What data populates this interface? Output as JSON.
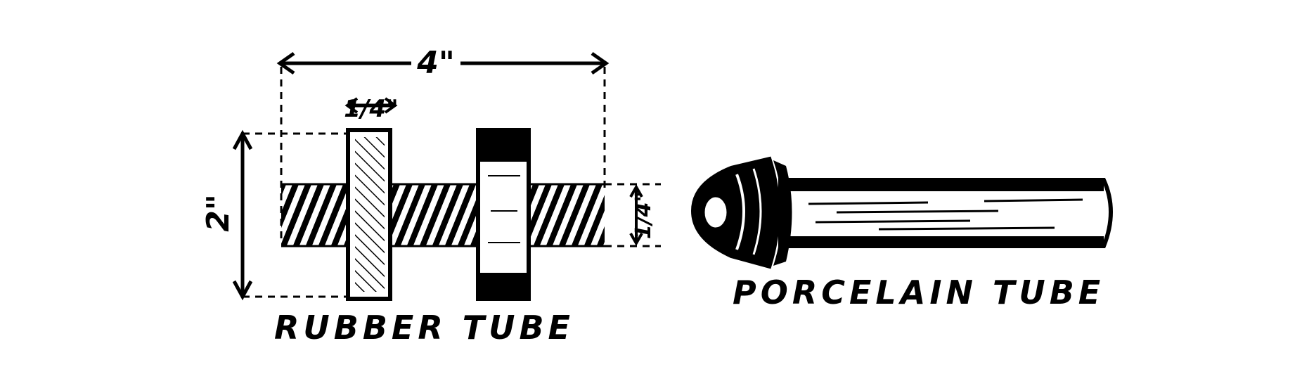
{
  "figure": {
    "left_caption": "RUBBER TUBE",
    "right_caption": "PORCELAIN TUBE",
    "dimensions": {
      "overall_length": "4\"",
      "disc_thickness": "1/4\"",
      "disc_diameter": "2\"",
      "rod_diameter": "1/4\""
    }
  },
  "colors": {
    "ink": "#000000",
    "paper": "#ffffff"
  }
}
